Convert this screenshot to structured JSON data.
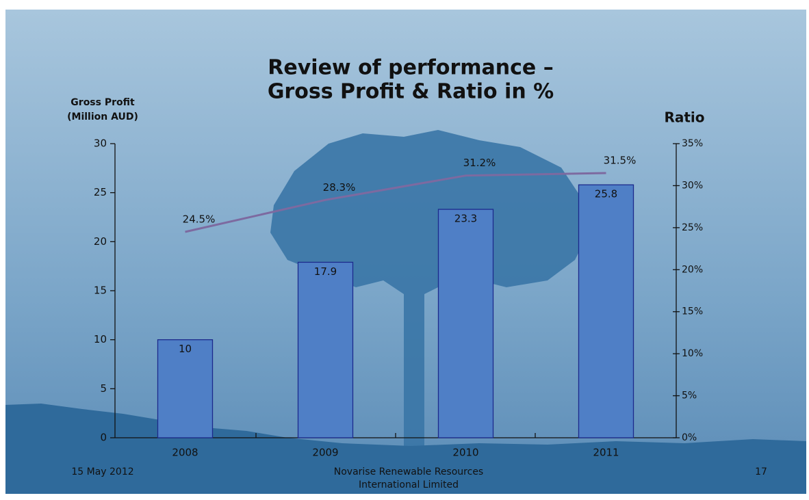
{
  "chart_data": {
    "type": "bar",
    "title": [
      "Review of performance –",
      "Gross Profit & Ratio in %"
    ],
    "y_label": [
      "Gross Profit",
      "(Million AUD)"
    ],
    "y2_label": "Ratio",
    "categories": [
      "2008",
      "2009",
      "2010",
      "2011"
    ],
    "series": [
      {
        "color": "#4f7fc6",
        "values": [
          10,
          17.9,
          23.3,
          25.8
        ]
      },
      {
        "color": "#7d6aa0",
        "axis": "y2",
        "values": [
          24.5,
          28.3,
          31.2,
          31.5
        ],
        "value_labels": [
          "24.5%",
          "28.3%",
          "31.2%",
          "31.5%"
        ]
      }
    ],
    "ylim": [
      0,
      30
    ],
    "yticks": [
      0,
      5,
      10,
      15,
      20,
      25,
      30
    ],
    "y2lim": [
      0,
      35
    ],
    "y2ticks": [
      {
        "value": 0,
        "label": "0%"
      },
      {
        "value": 5,
        "label": "5%"
      },
      {
        "value": 10,
        "label": "10%"
      },
      {
        "value": 15,
        "label": "15%"
      },
      {
        "value": 20,
        "label": "20%"
      },
      {
        "value": 25,
        "label": "25%"
      },
      {
        "value": 30,
        "label": "30%"
      },
      {
        "value": 35,
        "label": "35%"
      }
    ],
    "footer": {
      "date": "15 May 2012",
      "company": [
        "Novarise Renewable Resources",
        "International Limited"
      ],
      "page": "17"
    }
  }
}
